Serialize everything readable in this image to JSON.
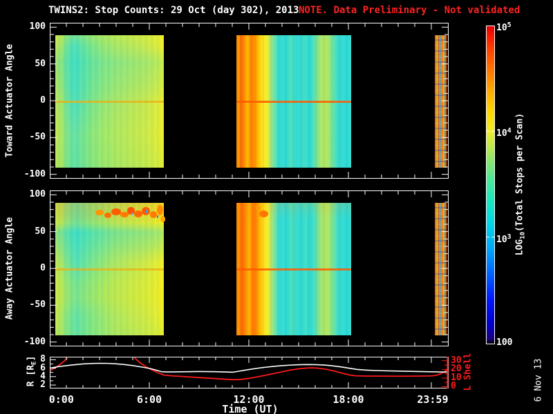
{
  "title": {
    "main": "TWINS2: Stop Counts: 29 Oct (day 302), 2013",
    "note": "NOTE. Data Preliminary - Not validated"
  },
  "date_stamp": "6 Nov 13",
  "colors": {
    "background": "#000000",
    "axis_white": "#ffffff",
    "note_red": "#ff2222",
    "lshell_red": "#ff1a1a"
  },
  "labels": {
    "toward": "Toward Actuator Angle",
    "away": "Away Actuator Angle",
    "r_pre": "R [R",
    "r_sub": "E",
    "r_post": "]",
    "lshell": "L Shell"
  },
  "xaxis": {
    "label": "Time (UT)",
    "major_hours": [
      6,
      12,
      18,
      23
    ],
    "labels": [
      {
        "text": "0:00",
        "h": 0.7
      },
      {
        "text": "6:00",
        "h": 6
      },
      {
        "text": "12:00",
        "h": 12
      },
      {
        "text": "18:00",
        "h": 18
      },
      {
        "text": "23:59",
        "h": 23.08
      }
    ]
  },
  "colorbar": {
    "title_pre": "LOG",
    "title_sub": "10",
    "title_post": "(Total Stops per Scan)",
    "ticks": [
      {
        "base": "10",
        "exp": "5",
        "log": 5
      },
      {
        "base": "10",
        "exp": "4",
        "log": 4
      },
      {
        "base": "10",
        "exp": "3",
        "log": 3
      },
      {
        "base": "100",
        "exp": "",
        "log": 2
      }
    ],
    "gradient": "linear-gradient(to top,#000000 0%,#1c0080 1.5%,#0000c8 6%,#0018ff 14%,#0064ff 22%,#00a8f8 30%,#00d8e8 38%,#18e8c0 45%,#50e896 52%,#8ce868 58%,#c8e844 63%,#f0ec28 67%,#ffd800 73%,#ffa800 80%,#ff7800 86%,#ff4800 92%,#f81800 97%,#e80000 100%)"
  },
  "chart_data": [
    {
      "type": "heatmap",
      "panel": "toward",
      "title": "Toward Actuator Angle",
      "ylim": [
        -105,
        105
      ],
      "yticks": [
        100,
        50,
        0,
        -50,
        -100
      ],
      "y_minor_step": 10,
      "data_angle_extent": [
        -90,
        90
      ],
      "x_hours_range": [
        0,
        24
      ],
      "zlabel": "LOG10(Total Stops per Scan)",
      "z_log_range": [
        2,
        5
      ],
      "blocks": [
        {
          "t_start": 0.33,
          "t_end": 6.87,
          "summary": "Fairly uniform ~10^3.9-10^4.1 green/yellow-green with cyan bands 0:45-2:30; bright yellow ~10^4.2 column at right edge; faint enhanced line at angle 0",
          "gradient": "linear-gradient(90deg,#c2e756 0%,#9ce46e 6%,#60e0a6 12%,#4cdebc 18%,#62e1a2 26%,#7ce388 34%,#96e574 44%,#a6e668 54%,#b2e660 64%,#bee755 76%,#cce84b 86%,#e0ea38 94%,#eeee28 100%)",
          "tint": "linear-gradient(180deg,rgba(255,240,0,0.20) 0%,rgba(0,0,0,0) 8%,rgba(0,220,240,0.18) 20%,rgba(0,220,240,0.10) 38%,rgba(0,0,0,0) 52%,rgba(230,240,40,0.15) 75%,rgba(160,230,70,0.20) 100%)",
          "stripes": "repeating-linear-gradient(90deg,rgba(255,255,120,0.10) 0px 2px,rgba(0,0,0,0) 2px 4px,rgba(0,190,210,0.08) 4px 6px,rgba(0,0,0,0) 6px 9px)",
          "y0_line": "rgba(235,175,20,0.75)",
          "blobs": []
        },
        {
          "t_start": 11.25,
          "t_end": 18.17,
          "summary": "Intense orange/red columns ~10^4.6-10^4.8 from 11:20-12:40, yellow to 13:00, then cyan ~10^3.5 with green streaks; green-yellow band 16:20-17:10; cyan to end",
          "gradient": "linear-gradient(90deg,#f07800 0%,#ff9c00 2%,#ff6800 4%,#ff8a00 7%,#ffc400 10%,#ff7400 13%,#ff9600 16%,#ffc000 19%,#ffe41e 23%,#f4ee28 26%,#c0e95e 29%,#66e2ac 33%,#34dcd0 37%,#30dbd3 43%,#4cdfbc 48%,#2edad5 53%,#3eddc8 59%,#30dbd2 65%,#7ce492 70%,#aae766 74%,#b6e75e 78%,#8ce684 82%,#40ddc6 87%,#2edad6 93%,#32dcd0 100%)",
          "tint": "",
          "stripes": "repeating-linear-gradient(90deg,rgba(255,255,255,0.05) 0px 2px,rgba(0,0,0,0) 2px 5px,rgba(0,60,120,0.06) 5px 7px,rgba(0,0,0,0) 7px 11px)",
          "y0_line": "rgba(255,90,0,0.85)",
          "blobs": []
        },
        {
          "t_start": 23.2,
          "t_end": 23.93,
          "summary": "Narrow chaotic segment: mixed red/orange ~10^4.6 with cyan, green, blue specks",
          "gradient": "repeating-linear-gradient(90deg,#ff6200 0px 2px,#ffae00 2px 3px,#38dcc8 3px 5px,#ff4a00 5px 7px,#ffd400 7px 8px,#2a7cff 8px 9px,#ff8400 9px 12px,#44dfc2 12px 14px,#ff5c00 14px 16px)",
          "tint": "repeating-linear-gradient(180deg,rgba(0,0,0,0) 0px 6px,rgba(0,60,200,0.30) 6px 8px,rgba(0,0,0,0) 8px 15px,rgba(255,255,255,0.12) 15px 16px)",
          "stripes": "",
          "y0_line": "",
          "blobs": []
        }
      ]
    },
    {
      "type": "heatmap",
      "panel": "away",
      "title": "Away Actuator Angle",
      "ylim": [
        -105,
        105
      ],
      "yticks": [
        100,
        50,
        0,
        -50,
        -100
      ],
      "y_minor_step": 10,
      "data_angle_extent": [
        -90,
        90
      ],
      "x_hours_range": [
        0,
        24
      ],
      "zlabel": "LOG10(Total Stops per Scan)",
      "z_log_range": [
        2,
        5
      ],
      "blocks": [
        {
          "t_start": 0.33,
          "t_end": 6.87,
          "summary": "Green/yellow-green base; cyan band at angles +40..+65; hot orange-red blob cluster ~10^4.7 at angles +65..+88 from 2:50-6:50 with tiny cyan/blue holes; bright yellow right-edge column",
          "gradient": "linear-gradient(90deg,#c8e750 0%,#a2e46a 6%,#6ae19e 13%,#54dfb4 20%,#6ae29c 28%,#84e482 38%,#9ee56c 48%,#b0e65e 58%,#bce756 68%,#c8e84c 78%,#d6e93e 88%,#ecec2a 96%,#f0ee26 100%)",
          "tint": "linear-gradient(180deg,rgba(255,150,0,0.30) 0%,rgba(255,170,0,0.22) 10%,rgba(255,220,0,0.18) 15%,rgba(0,215,245,0.30) 22%,rgba(0,215,245,0.20) 32%,rgba(0,0,0,0) 45%,rgba(255,240,0,0.18) 60%,rgba(255,235,0,0.22) 72%,rgba(220,240,40,0.10) 85%,rgba(150,230,80,0.18) 100%)",
          "stripes": "repeating-linear-gradient(90deg,rgba(255,255,120,0.10) 0px 2px,rgba(0,0,0,0) 2px 4px,rgba(0,190,210,0.08) 4px 6px,rgba(0,0,0,0) 6px 9px)",
          "y0_line": "rgba(235,175,20,0.75)",
          "blobs": [
            {
              "t": 3.0,
              "angle": 77,
              "w_h": 0.5,
              "h_deg": 8,
              "color": "#ff9400"
            },
            {
              "t": 3.5,
              "angle": 73,
              "w_h": 0.45,
              "h_deg": 8,
              "color": "#ff7000"
            },
            {
              "t": 4.0,
              "angle": 78,
              "w_h": 0.55,
              "h_deg": 9,
              "color": "#ff5e00"
            },
            {
              "t": 4.5,
              "angle": 74,
              "w_h": 0.5,
              "h_deg": 8,
              "color": "#ff7c00"
            },
            {
              "t": 4.9,
              "angle": 79,
              "w_h": 0.45,
              "h_deg": 10,
              "color": "#ff5200"
            },
            {
              "t": 5.35,
              "angle": 75,
              "w_h": 0.5,
              "h_deg": 9,
              "color": "#ff6a00"
            },
            {
              "t": 5.8,
              "angle": 79,
              "w_h": 0.5,
              "h_deg": 11,
              "color": "#ff5c00"
            },
            {
              "t": 6.25,
              "angle": 74,
              "w_h": 0.45,
              "h_deg": 9,
              "color": "#ff7a00"
            },
            {
              "t": 6.65,
              "angle": 80,
              "w_h": 0.4,
              "h_deg": 14,
              "color": "#ff8c00"
            },
            {
              "t": 6.8,
              "angle": 68,
              "w_h": 0.3,
              "h_deg": 8,
              "color": "#ffa800"
            },
            {
              "t": 4.95,
              "angle": 75,
              "w_h": 0.1,
              "h_deg": 4,
              "color": "#38c8ff"
            },
            {
              "t": 5.85,
              "angle": 78,
              "w_h": 0.1,
              "h_deg": 5,
              "color": "#2ea0ff"
            },
            {
              "t": 6.5,
              "angle": 71,
              "w_h": 0.08,
              "h_deg": 4,
              "color": "#2e6eff"
            }
          ]
        },
        {
          "t_start": 11.25,
          "t_end": 18.17,
          "summary": "Orange/red columns 11:20-12:40 with orange blob at top near 12:40-13:10; then cyan with green streaks; green-yellow band 16:20-17:10; cyan to end",
          "gradient": "linear-gradient(90deg,#f07400 0%,#ff9800 2%,#ff6400 5%,#ff8800 8%,#ffc000 11%,#ff7000 14%,#ff9400 18%,#ffbe00 21%,#ffe01e 24%,#f2ee2a 27%,#bce960 30%,#62e1b0 34%,#32dcd2 38%,#30dbd3 44%,#4adfbe 49%,#2edad5 54%,#3cddc9 60%,#30dbd2 66%,#78e495 71%,#a6e668 75%,#b2e760 79%,#88e588 83%,#3eddc8 88%,#2edad6 94%,#30dcd1 100%)",
          "tint": "linear-gradient(180deg,rgba(255,140,0,0.15) 0%,rgba(0,0,0,0) 12%)",
          "stripes": "repeating-linear-gradient(90deg,rgba(255,255,255,0.05) 0px 2px,rgba(0,0,0,0) 2px 5px,rgba(0,60,120,0.06) 5px 7px,rgba(0,0,0,0) 7px 11px)",
          "y0_line": "rgba(255,90,0,0.85)",
          "blobs": [
            {
              "t": 12.9,
              "angle": 75,
              "w_h": 0.55,
              "h_deg": 10,
              "color": "#ff7600"
            },
            {
              "t": 12.55,
              "angle": 83,
              "w_h": 0.3,
              "h_deg": 6,
              "color": "#ff9a00"
            }
          ]
        },
        {
          "t_start": 23.2,
          "t_end": 23.93,
          "summary": "Narrow chaotic segment: mixed red/orange with cyan, green, blue specks",
          "gradient": "repeating-linear-gradient(90deg,#ff6200 0px 2px,#ffae00 2px 3px,#38dcc8 3px 5px,#ff4a00 5px 7px,#ffd400 7px 8px,#2a7cff 8px 9px,#ff8400 9px 12px,#44dfc2 12px 14px,#ff5c00 14px 16px)",
          "tint": "repeating-linear-gradient(180deg,rgba(0,0,0,0) 0px 6px,rgba(0,60,200,0.30) 6px 8px,rgba(0,0,0,0) 8px 15px,rgba(255,255,255,0.12) 15px 16px)",
          "stripes": "",
          "y0_line": "",
          "blobs": []
        }
      ]
    },
    {
      "type": "line",
      "xlabel": "Time (UT)",
      "x_tick_labels": [
        "0:00",
        "6:00",
        "12:00",
        "18:00",
        "23:59"
      ],
      "series": [
        {
          "name": "R [RE]",
          "color": "#ffffff",
          "axis": "left",
          "ylim_plot": [
            1.35,
            8.55
          ],
          "yticks": [
            8,
            6,
            4,
            2
          ],
          "yticks_minor": [
            3,
            5,
            7
          ],
          "points": [
            [
              0,
              6.0
            ],
            [
              0.5,
              6.35
            ],
            [
              1,
              6.6
            ],
            [
              1.5,
              6.82
            ],
            [
              2,
              7.0
            ],
            [
              2.5,
              7.1
            ],
            [
              3,
              7.16
            ],
            [
              3.5,
              7.14
            ],
            [
              4,
              7.03
            ],
            [
              4.5,
              6.86
            ],
            [
              5,
              6.62
            ],
            [
              5.5,
              6.3
            ],
            [
              6,
              5.95
            ],
            [
              6.4,
              5.55
            ],
            [
              6.75,
              5.15
            ],
            [
              7.2,
              5.1
            ],
            [
              8,
              5.15
            ],
            [
              9,
              5.2
            ],
            [
              10,
              5.17
            ],
            [
              10.7,
              5.08
            ],
            [
              11.05,
              5.05
            ],
            [
              11.4,
              5.28
            ],
            [
              12,
              5.68
            ],
            [
              12.5,
              5.97
            ],
            [
              13,
              6.22
            ],
            [
              13.5,
              6.43
            ],
            [
              14,
              6.6
            ],
            [
              14.5,
              6.73
            ],
            [
              15,
              6.82
            ],
            [
              15.5,
              6.87
            ],
            [
              16,
              6.85
            ],
            [
              16.5,
              6.76
            ],
            [
              17,
              6.58
            ],
            [
              17.5,
              6.33
            ],
            [
              18,
              6.02
            ],
            [
              18.5,
              5.72
            ],
            [
              19,
              5.55
            ],
            [
              19.5,
              5.46
            ],
            [
              20,
              5.4
            ],
            [
              21,
              5.3
            ],
            [
              22,
              5.22
            ],
            [
              23,
              5.15
            ],
            [
              23.6,
              5.1
            ],
            [
              24,
              5.08
            ]
          ]
        },
        {
          "name": "L Shell",
          "color": "#ff1a1a",
          "axis": "right",
          "ylim_plot": [
            -1.2,
            33.8
          ],
          "yticks": [
            30,
            20,
            10,
            0
          ],
          "yticks_minor": [
            5,
            15,
            25
          ],
          "segments": [
            [
              [
                0,
                18.5
              ],
              [
                0.3,
                21.5
              ],
              [
                0.6,
                25.5
              ],
              [
                0.9,
                30.0
              ],
              [
                1.05,
                33.5
              ]
            ],
            [
              [
                5.1,
                33.5
              ],
              [
                5.45,
                27.5
              ],
              [
                5.8,
                23.0
              ],
              [
                6.2,
                19.0
              ],
              [
                6.6,
                15.5
              ],
              [
                6.9,
                13.3
              ],
              [
                7.5,
                12.4
              ],
              [
                8.5,
                11.2
              ],
              [
                9.5,
                10.0
              ],
              [
                10.5,
                8.8
              ],
              [
                11.1,
                8.1
              ],
              [
                11.5,
                8.4
              ],
              [
                12,
                9.6
              ],
              [
                12.5,
                11.3
              ],
              [
                13,
                13.2
              ],
              [
                13.5,
                15.2
              ],
              [
                14,
                17.2
              ],
              [
                14.5,
                19.2
              ],
              [
                15,
                20.7
              ],
              [
                15.5,
                21.6
              ],
              [
                15.8,
                21.8
              ],
              [
                16.2,
                21.4
              ],
              [
                16.7,
                20.0
              ],
              [
                17.2,
                17.8
              ],
              [
                17.7,
                15.3
              ],
              [
                18.1,
                13.4
              ],
              [
                18.45,
                12.6
              ],
              [
                19,
                12.35
              ],
              [
                20,
                12.2
              ],
              [
                21,
                12.15
              ],
              [
                22,
                12.25
              ],
              [
                23,
                12.5
              ],
              [
                23.3,
                13.2
              ],
              [
                23.6,
                15.3
              ],
              [
                23.85,
                18.2
              ],
              [
                24,
                20.8
              ]
            ]
          ]
        }
      ]
    }
  ]
}
